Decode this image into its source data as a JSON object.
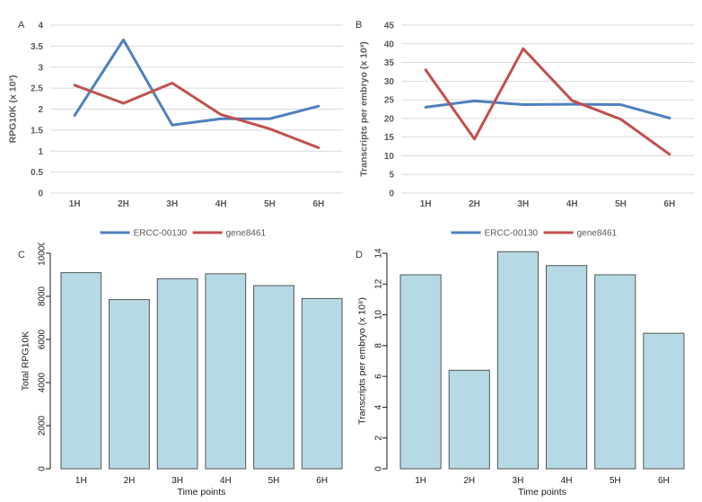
{
  "figure": {
    "background": "#ffffff"
  },
  "colors": {
    "gridline": "#d9d9d9",
    "excel_text": "#595959",
    "r_text": "#1a1a1a",
    "series_blue": "#4F81BD",
    "series_red": "#C0504D",
    "bar_fill": "#b5d9e5",
    "bar_border": "#555555"
  },
  "chart_data": [
    {
      "panel_label": "A",
      "type": "line",
      "style": "excel",
      "categories": [
        "1H",
        "2H",
        "3H",
        "4H",
        "5H",
        "6H"
      ],
      "series": [
        {
          "name": "ERCC-00130",
          "color": "#4F81BD",
          "values": [
            1.85,
            3.65,
            1.62,
            1.77,
            1.77,
            2.07
          ]
        },
        {
          "name": "gene8461",
          "color": "#C0504D",
          "values": [
            2.57,
            2.14,
            2.62,
            1.87,
            1.53,
            1.08
          ]
        }
      ],
      "title": "",
      "xlabel": "",
      "ylabel": "RPG10K (x 10²)",
      "ylim": [
        0,
        4
      ],
      "ytick_step": 0.5,
      "ytick_labels": [
        "0",
        "0.5",
        "1",
        "1.5",
        "2",
        "2.5",
        "3",
        "3.5",
        "4"
      ],
      "grid": true,
      "legend_position": "bottom",
      "legend_entries": [
        "ERCC-00130",
        "gene8461"
      ]
    },
    {
      "panel_label": "B",
      "type": "line",
      "style": "excel",
      "categories": [
        "1H",
        "2H",
        "3H",
        "4H",
        "5H",
        "6H"
      ],
      "series": [
        {
          "name": "ERCC-00130",
          "color": "#4F81BD",
          "values": [
            23.0,
            24.7,
            23.7,
            23.8,
            23.7,
            20.1
          ]
        },
        {
          "name": "gene8461",
          "color": "#C0504D",
          "values": [
            33.0,
            14.5,
            38.7,
            24.8,
            19.8,
            10.4
          ]
        }
      ],
      "title": "",
      "xlabel": "",
      "ylabel": "Transcripts per embryo (x 10³)",
      "ylim": [
        0,
        45
      ],
      "ytick_step": 5,
      "ytick_labels": [
        "0",
        "5",
        "10",
        "15",
        "20",
        "25",
        "30",
        "35",
        "40",
        "45"
      ],
      "grid": true,
      "legend_position": "bottom",
      "legend_entries": [
        "ERCC-00130",
        "gene8461"
      ]
    },
    {
      "panel_label": "C",
      "type": "bar",
      "style": "r-base",
      "categories": [
        "1H",
        "2H",
        "3H",
        "4H",
        "5H",
        "6H"
      ],
      "values": [
        9100,
        7850,
        8820,
        9050,
        8500,
        7900
      ],
      "title": "",
      "xlabel": "Time points",
      "ylabel": "Total RPG10K",
      "ylim": [
        0,
        10000
      ],
      "ytick_step": 2000,
      "ytick_labels": [
        "0",
        "2000",
        "4000",
        "6000",
        "8000",
        "10000"
      ],
      "grid": false,
      "bar_fill": "#b5d9e5",
      "bar_border": "#555555"
    },
    {
      "panel_label": "D",
      "type": "bar",
      "style": "r-base",
      "categories": [
        "1H",
        "2H",
        "3H",
        "4H",
        "5H",
        "6H"
      ],
      "values": [
        12.6,
        6.4,
        14.1,
        13.2,
        12.6,
        8.8
      ],
      "title": "",
      "xlabel": "Time points",
      "ylabel": "Transcripts per embryo (x 10⁸)",
      "ylim": [
        0,
        14
      ],
      "ytick_step": 2,
      "ytick_labels": [
        "0",
        "2",
        "4",
        "6",
        "8",
        "10",
        "12",
        "14"
      ],
      "grid": false,
      "bar_fill": "#b5d9e5",
      "bar_border": "#555555"
    }
  ]
}
